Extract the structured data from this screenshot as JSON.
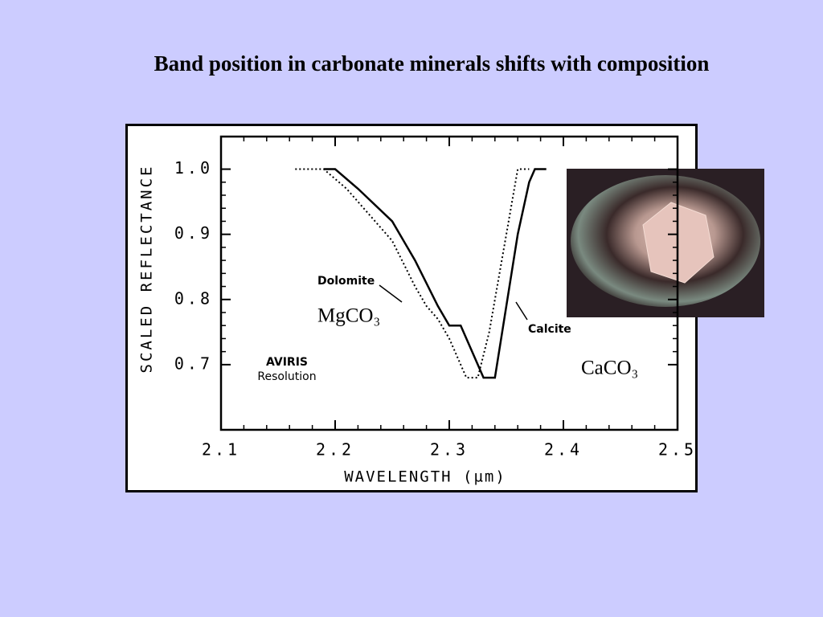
{
  "slide": {
    "title": "Band position in carbonate minerals shifts with composition",
    "labels": [
      "MgCO₃",
      "CaCO₃"
    ]
  },
  "chart_data": {
    "type": "line",
    "x_label": "WAVELENGTH (µm)",
    "y_label": "SCALED REFLECTANCE",
    "xlim": [
      2.1,
      2.5
    ],
    "ylim": [
      0.6,
      1.05
    ],
    "xticks": [
      2.1,
      2.2,
      2.3,
      2.4,
      2.5
    ],
    "yticks": [
      0.7,
      0.8,
      0.9,
      {
        "value": 1,
        "label": "1.0"
      }
    ],
    "annotation": [
      "AVIRIS",
      "Resolution"
    ],
    "series": [
      {
        "name": "Dolomite",
        "color": "#000000",
        "style": "dotted",
        "x": [
          2.165,
          2.19,
          2.21,
          2.23,
          2.25,
          2.27,
          2.28,
          2.29,
          2.3,
          2.31,
          2.315,
          2.325,
          2.335,
          2.35,
          2.36,
          2.37
        ],
        "values": [
          1.0,
          1.0,
          0.97,
          0.93,
          0.89,
          0.82,
          0.79,
          0.77,
          0.74,
          0.7,
          0.68,
          0.68,
          0.75,
          0.9,
          1.0,
          1.0
        ]
      },
      {
        "name": "Calcite",
        "color": "#000000",
        "style": "solid",
        "x": [
          2.19,
          2.2,
          2.22,
          2.25,
          2.27,
          2.29,
          2.3,
          2.31,
          2.32,
          2.33,
          2.34,
          2.36,
          2.37,
          2.375,
          2.385
        ],
        "values": [
          1.0,
          1.0,
          0.97,
          0.92,
          0.86,
          0.79,
          0.76,
          0.76,
          0.72,
          0.68,
          0.68,
          0.9,
          0.98,
          1.0,
          1.0
        ]
      }
    ]
  }
}
